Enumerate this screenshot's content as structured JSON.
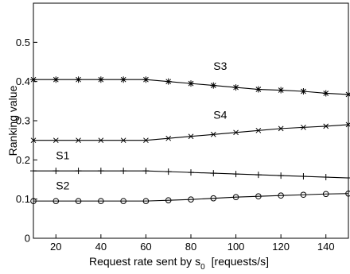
{
  "chart_data": {
    "type": "line",
    "xlabel": "Request rate sent by s",
    "xlabel_sub": "0",
    "xlabel_units": "[requests/s]",
    "ylabel": "Ranking value",
    "xlim": [
      10,
      150
    ],
    "ylim": [
      0,
      0.6
    ],
    "xticks": [
      20,
      40,
      60,
      80,
      100,
      120,
      140
    ],
    "yticks": [
      0,
      0.1,
      0.2,
      0.3,
      0.4,
      0.5
    ],
    "ytick_labels": [
      "0",
      "0.1",
      "0.2",
      "0.3",
      "0.4",
      "0.5"
    ],
    "grid": false,
    "x": [
      10,
      20,
      30,
      40,
      50,
      60,
      70,
      80,
      90,
      100,
      110,
      120,
      130,
      140,
      150
    ],
    "series": [
      {
        "name": "S3",
        "marker": "asterisk",
        "values": [
          0.405,
          0.405,
          0.405,
          0.405,
          0.405,
          0.405,
          0.4,
          0.395,
          0.39,
          0.385,
          0.38,
          0.378,
          0.375,
          0.37,
          0.367
        ]
      },
      {
        "name": "S4",
        "marker": "x",
        "values": [
          0.25,
          0.25,
          0.25,
          0.25,
          0.25,
          0.25,
          0.255,
          0.26,
          0.265,
          0.27,
          0.275,
          0.28,
          0.283,
          0.286,
          0.29
        ]
      },
      {
        "name": "S1",
        "marker": "plus",
        "values": [
          0.172,
          0.172,
          0.172,
          0.172,
          0.172,
          0.172,
          0.17,
          0.168,
          0.166,
          0.164,
          0.162,
          0.16,
          0.158,
          0.156,
          0.154
        ]
      },
      {
        "name": "S2",
        "marker": "circle",
        "values": [
          0.095,
          0.095,
          0.095,
          0.095,
          0.095,
          0.095,
          0.097,
          0.099,
          0.102,
          0.105,
          0.107,
          0.109,
          0.111,
          0.113,
          0.114
        ]
      }
    ]
  }
}
